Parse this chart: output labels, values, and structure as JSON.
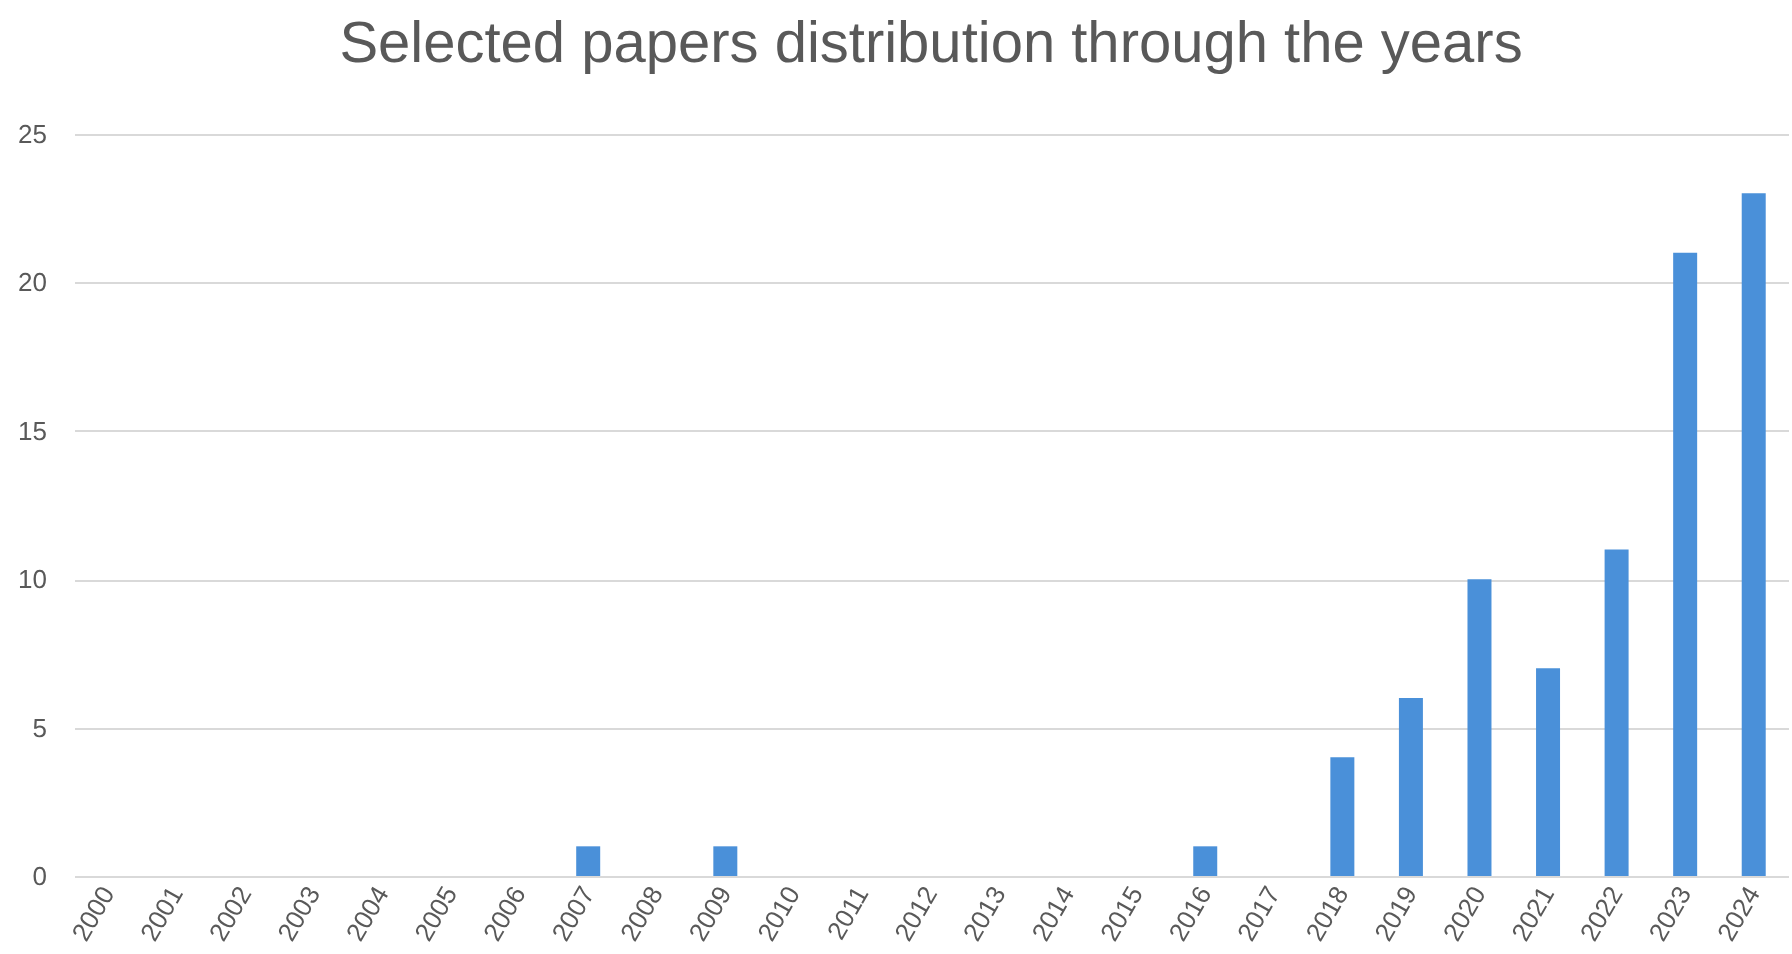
{
  "chart_data": {
    "type": "bar",
    "title": "Selected papers distribution through the years",
    "categories": [
      "2000",
      "2001",
      "2002",
      "2003",
      "2004",
      "2005",
      "2006",
      "2007",
      "2008",
      "2009",
      "2010",
      "2011",
      "2012",
      "2013",
      "2014",
      "2015",
      "2016",
      "2017",
      "2018",
      "2019",
      "2020",
      "2021",
      "2022",
      "2023",
      "2024"
    ],
    "values": [
      0,
      0,
      0,
      0,
      0,
      0,
      0,
      1,
      0,
      1,
      0,
      0,
      0,
      0,
      0,
      0,
      1,
      0,
      4,
      6,
      10,
      7,
      11,
      21,
      23
    ],
    "color": "#4a90d9",
    "ylim": [
      0,
      25
    ],
    "yticks": [
      0,
      5,
      10,
      15,
      20,
      25
    ],
    "grid": "y"
  }
}
